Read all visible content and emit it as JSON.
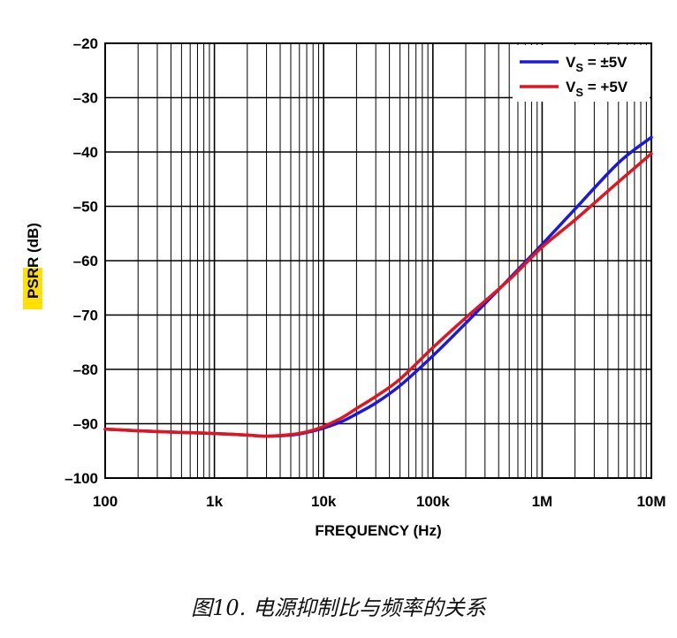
{
  "chart_data": {
    "type": "line",
    "xlabel": "FREQUENCY (Hz)",
    "ylabel_highlight": "PSRR",
    "ylabel_rest": " (dB)",
    "x_scale": "log",
    "xlim": [
      100,
      10000000
    ],
    "ylim": [
      -100,
      -20
    ],
    "grid": true,
    "x_ticks": [
      100,
      1000,
      10000,
      100000,
      1000000,
      10000000
    ],
    "x_tick_labels": [
      "100",
      "1k",
      "10k",
      "100k",
      "1M",
      "10M"
    ],
    "y_ticks": [
      -20,
      -30,
      -40,
      -50,
      -60,
      -70,
      -80,
      -90,
      -100
    ],
    "y_tick_labels": [
      "–20",
      "–30",
      "–40",
      "–50",
      "–60",
      "–70",
      "–80",
      "–90",
      "–100"
    ],
    "legend_position": "top-right",
    "series": [
      {
        "name": "±5V",
        "name_prefix": "V",
        "name_sub": "S",
        "name_eq": " = ±5V",
        "color": "#1a1adc",
        "x": [
          100,
          200,
          500,
          1000,
          2000,
          3000,
          5000,
          7000,
          10000,
          15000,
          20000,
          30000,
          50000,
          100000,
          200000,
          500000,
          1000000,
          2000000,
          5000000,
          10000000
        ],
        "y": [
          -91.0,
          -91.3,
          -91.6,
          -91.8,
          -92.1,
          -92.3,
          -92.1,
          -91.6,
          -90.8,
          -89.5,
          -88.2,
          -86.2,
          -83.0,
          -77.5,
          -71.5,
          -63.3,
          -57.0,
          -50.5,
          -42.0,
          -37.3
        ]
      },
      {
        "name": "+5V",
        "name_prefix": "V",
        "name_sub": "S",
        "name_eq": " = +5V",
        "color": "#e0151e",
        "x": [
          100,
          200,
          500,
          1000,
          2000,
          3000,
          5000,
          7000,
          10000,
          15000,
          20000,
          30000,
          50000,
          100000,
          200000,
          500000,
          1000000,
          2000000,
          5000000,
          10000000
        ],
        "y": [
          -91.0,
          -91.3,
          -91.6,
          -91.8,
          -92.1,
          -92.3,
          -92.0,
          -91.5,
          -90.5,
          -88.8,
          -87.2,
          -85.0,
          -81.8,
          -76.0,
          -70.5,
          -63.5,
          -57.5,
          -52.5,
          -45.5,
          -40.3
        ]
      }
    ]
  },
  "caption": "图10. 电源抑制比与频率的关系"
}
